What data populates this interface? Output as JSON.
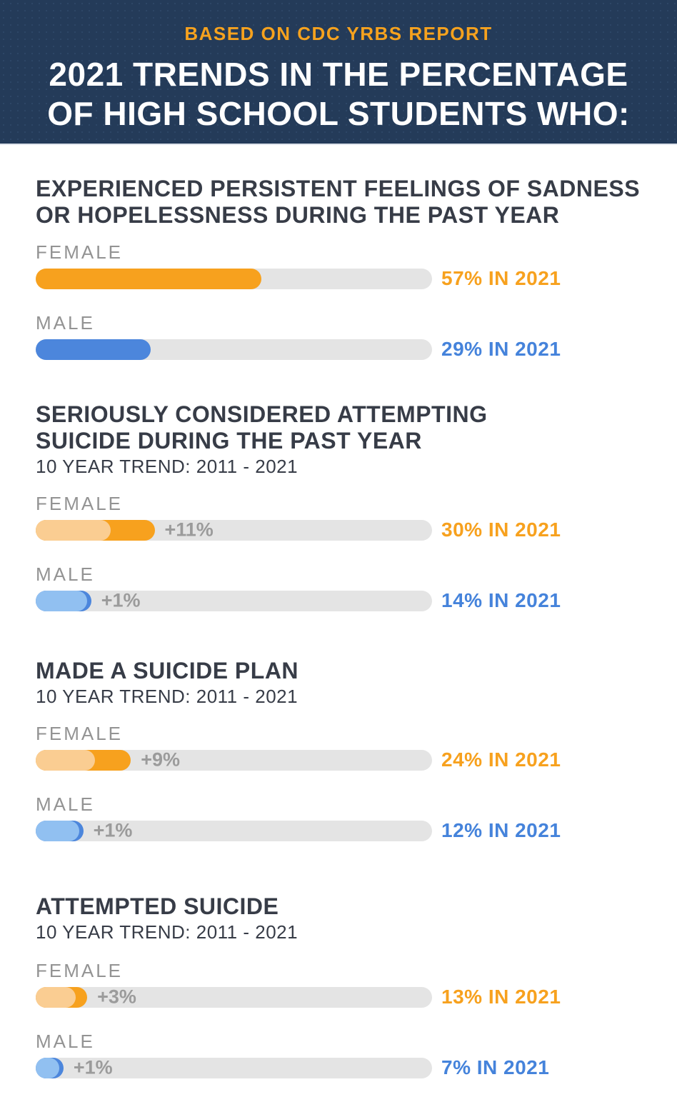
{
  "header": {
    "eyebrow": "BASED ON CDC YRBS REPORT",
    "title_line1": "2021 TRENDS IN THE PERCENTAGE",
    "title_line2": "OF HIGH SCHOOL STUDENTS WHO:"
  },
  "colors": {
    "header_bg": "#243B59",
    "accent_orange": "#F7A11E",
    "light_orange": "#FACD92",
    "accent_blue": "#4C86DC",
    "light_blue": "#91C0F1",
    "track_gray": "#E4E4E4",
    "heading_text": "#373C47",
    "label_gray": "#939393"
  },
  "chart_data": {
    "type": "bar",
    "title": "2021 TRENDS IN THE PERCENTAGE OF HIGH SCHOOL STUDENTS WHO:",
    "subtitle": "BASED ON CDC YRBS REPORT",
    "unit": "percent of high school students",
    "xlim": [
      0,
      100
    ],
    "legend": [
      "FEMALE",
      "MALE"
    ],
    "sections": [
      {
        "heading_line1": "EXPERIENCED PERSISTENT FEELINGS OF SADNESS",
        "heading_line2": "OR HOPELESSNESS DURING THE PAST YEAR",
        "bars": [
          {
            "label": "FEMALE",
            "value_2021": 57,
            "value_text": "57% IN 2021"
          },
          {
            "label": "MALE",
            "value_2021": 29,
            "value_text": "29% IN 2021"
          }
        ]
      },
      {
        "heading_line1": "SERIOUSLY CONSIDERED ATTEMPTING",
        "heading_line2": "SUICIDE DURING THE PAST YEAR",
        "trend_label": "10 YEAR TREND: 2011 - 2021",
        "bars": [
          {
            "label": "FEMALE",
            "value_2011": 19,
            "value_2021": 30,
            "change": 11,
            "change_text": "+11%",
            "value_text": "30% IN 2021"
          },
          {
            "label": "MALE",
            "value_2011": 13,
            "value_2021": 14,
            "change": 1,
            "change_text": "+1%",
            "value_text": "14% IN 2021"
          }
        ]
      },
      {
        "heading_line1": "MADE A SUICIDE PLAN",
        "trend_label": "10 YEAR TREND: 2011 - 2021",
        "bars": [
          {
            "label": "FEMALE",
            "value_2011": 15,
            "value_2021": 24,
            "change": 9,
            "change_text": "+9%",
            "value_text": "24% IN 2021"
          },
          {
            "label": "MALE",
            "value_2011": 11,
            "value_2021": 12,
            "change": 1,
            "change_text": "+1%",
            "value_text": "12% IN 2021"
          }
        ]
      },
      {
        "heading_line1": "ATTEMPTED SUICIDE",
        "trend_label": "10 YEAR TREND: 2011 - 2021",
        "bars": [
          {
            "label": "FEMALE",
            "value_2011": 10,
            "value_2021": 13,
            "change": 3,
            "change_text": "+3%",
            "value_text": "13% IN 2021"
          },
          {
            "label": "MALE",
            "value_2011": 6,
            "value_2021": 7,
            "change": 1,
            "change_text": "+1%",
            "value_text": "7% IN 2021"
          }
        ]
      }
    ]
  }
}
